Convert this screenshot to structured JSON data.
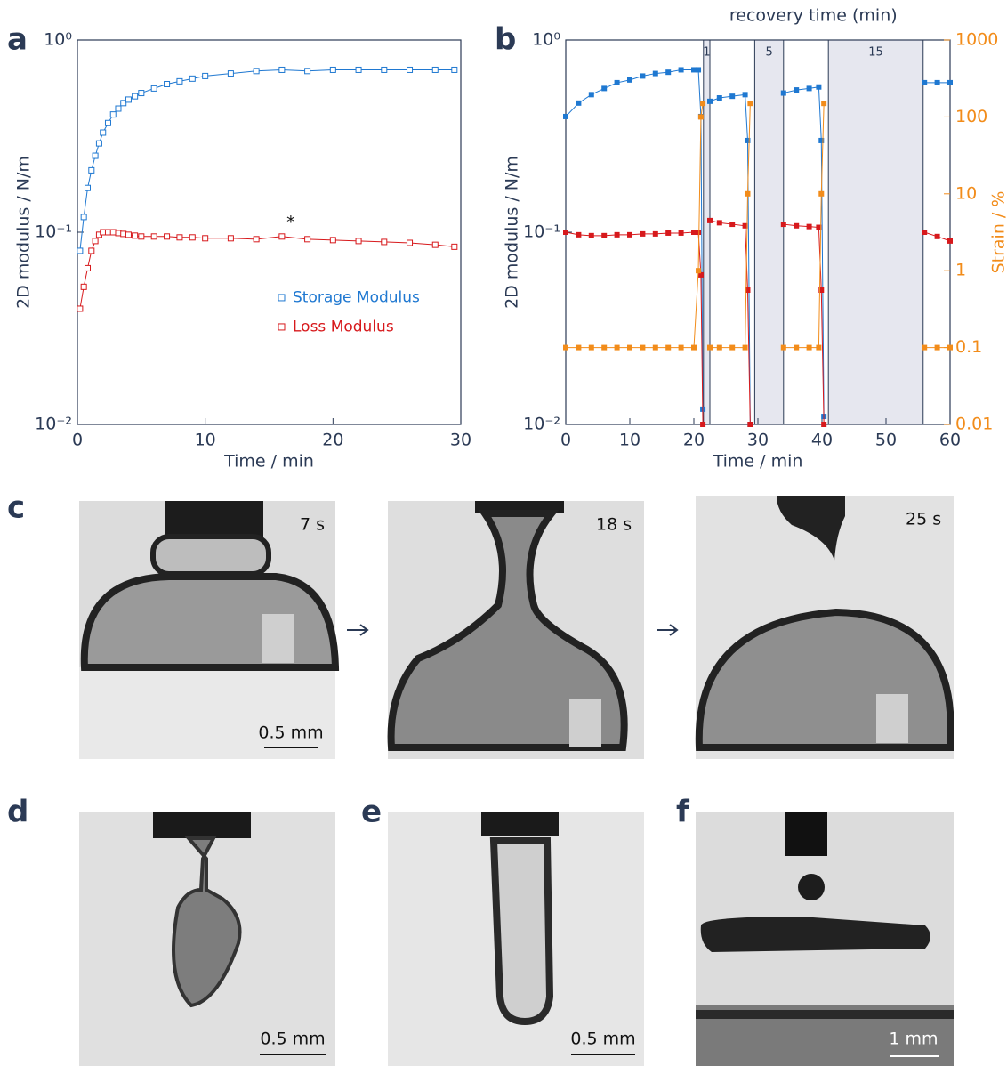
{
  "panel_labels": [
    "a",
    "b",
    "c",
    "d",
    "e",
    "f"
  ],
  "chart_data": [
    {
      "type": "scatter",
      "xlabel": "Time / min",
      "ylabel": "2D modulus / N/m",
      "xlim": [
        0,
        30
      ],
      "xticks": [
        0,
        10,
        20,
        30
      ],
      "ylim": [
        0.01,
        1
      ],
      "ylog": true,
      "yticks": [
        {
          "value": 1,
          "label": "10⁰"
        },
        {
          "value": 0.1,
          "label": "10⁻¹"
        },
        {
          "value": 0.01,
          "label": "10⁻²"
        }
      ],
      "legend": "right",
      "marker": "open-square",
      "annotations": [
        {
          "text": "*",
          "x": 16.7,
          "y": 0.112
        }
      ],
      "series": [
        {
          "name": "Storage Modulus",
          "color": "#1f78d1",
          "x": [
            0.2,
            0.5,
            0.8,
            1.1,
            1.4,
            1.7,
            2,
            2.4,
            2.8,
            3.2,
            3.6,
            4,
            4.5,
            5,
            6,
            7,
            8,
            9,
            10,
            12,
            14,
            16,
            18,
            20,
            22,
            24,
            26,
            28,
            29.5
          ],
          "values": [
            0.08,
            0.12,
            0.17,
            0.21,
            0.25,
            0.29,
            0.33,
            0.37,
            0.41,
            0.44,
            0.47,
            0.49,
            0.51,
            0.53,
            0.56,
            0.59,
            0.61,
            0.63,
            0.65,
            0.67,
            0.69,
            0.7,
            0.69,
            0.7,
            0.7,
            0.7,
            0.7,
            0.7,
            0.7
          ]
        },
        {
          "name": "Loss Modulus",
          "color": "#d7191c",
          "x": [
            0.2,
            0.5,
            0.8,
            1.1,
            1.4,
            1.7,
            2,
            2.4,
            2.8,
            3.2,
            3.6,
            4,
            4.5,
            5,
            6,
            7,
            8,
            9,
            10,
            12,
            14,
            16,
            18,
            20,
            22,
            24,
            26,
            28,
            29.5
          ],
          "values": [
            0.04,
            0.052,
            0.065,
            0.08,
            0.09,
            0.097,
            0.1,
            0.1,
            0.1,
            0.099,
            0.098,
            0.097,
            0.096,
            0.095,
            0.095,
            0.095,
            0.094,
            0.094,
            0.093,
            0.093,
            0.092,
            0.095,
            0.092,
            0.091,
            0.09,
            0.089,
            0.088,
            0.086,
            0.084
          ]
        }
      ]
    },
    {
      "type": "scatter",
      "xlabel": "Time / min",
      "ylabel": "2D modulus / N/m",
      "y2label": "Strain / %",
      "annotation": "recovery time (min)",
      "xlim": [
        0,
        60
      ],
      "xticks": [
        0,
        10,
        20,
        30,
        40,
        50,
        60
      ],
      "ylim": [
        0.01,
        1
      ],
      "ylog": true,
      "yticks": [
        {
          "value": 1,
          "label": "10⁰"
        },
        {
          "value": 0.1,
          "label": "10⁻¹"
        },
        {
          "value": 0.01,
          "label": "10⁻²"
        }
      ],
      "y2lim": [
        0.01,
        1000
      ],
      "y2log": true,
      "y2ticks": [
        0.01,
        0.1,
        1,
        10,
        100,
        1000
      ],
      "y2color": "#f28c1a",
      "legend": false,
      "marker": "filled-square",
      "shaded_regions": [
        {
          "xlim": [
            21.5,
            22.5
          ],
          "label": 1
        },
        {
          "xlim": [
            29.5,
            34
          ],
          "label": 5
        },
        {
          "xlim": [
            41,
            55.8
          ],
          "label": 15
        }
      ],
      "series": [
        {
          "color": "#1f78d1",
          "x": [
            0,
            2,
            4,
            6,
            8,
            10,
            12,
            14,
            16,
            18,
            20,
            20.7,
            21.1,
            21.4,
            21.9,
            22.5,
            24,
            26,
            28,
            28.4,
            28.8,
            31,
            34,
            36,
            38,
            39.5,
            39.9,
            40.3,
            48,
            56,
            58,
            60
          ],
          "values": [
            0.4,
            0.47,
            0.52,
            0.56,
            0.6,
            0.62,
            0.65,
            0.67,
            0.68,
            0.7,
            0.7,
            0.7,
            0.4,
            0.012,
            null,
            0.48,
            0.5,
            0.51,
            0.52,
            0.3,
            0.01,
            null,
            0.53,
            0.55,
            0.56,
            0.57,
            0.3,
            0.011,
            null,
            0.6,
            0.6,
            0.6
          ]
        },
        {
          "color": "#d7191c",
          "x": [
            0,
            2,
            4,
            6,
            8,
            10,
            12,
            14,
            16,
            18,
            20,
            20.7,
            21.1,
            21.4,
            21.9,
            22.5,
            24,
            26,
            28,
            28.4,
            28.8,
            31,
            34,
            36,
            38,
            39.5,
            39.9,
            40.3,
            48,
            56,
            58,
            60
          ],
          "values": [
            0.1,
            0.097,
            0.096,
            0.096,
            0.097,
            0.097,
            0.098,
            0.098,
            0.099,
            0.099,
            0.1,
            0.1,
            0.06,
            0.01,
            null,
            0.115,
            0.112,
            0.11,
            0.108,
            0.05,
            0.01,
            null,
            0.11,
            0.108,
            0.107,
            0.106,
            0.05,
            0.01,
            null,
            0.1,
            0.095,
            0.09
          ]
        },
        {
          "color": "#f28c1a",
          "axis": "y2",
          "x": [
            0,
            2,
            4,
            6,
            8,
            10,
            12,
            14,
            16,
            18,
            20,
            20.7,
            21.1,
            21.4,
            21.9,
            22.5,
            24,
            26,
            28,
            28.4,
            28.8,
            31,
            34,
            36,
            38,
            39.5,
            39.9,
            40.3,
            48,
            56,
            58,
            60
          ],
          "values": [
            0.1,
            0.1,
            0.1,
            0.1,
            0.1,
            0.1,
            0.1,
            0.1,
            0.1,
            0.1,
            0.1,
            1,
            100,
            150,
            null,
            0.1,
            0.1,
            0.1,
            0.1,
            10,
            150,
            null,
            0.1,
            0.1,
            0.1,
            0.1,
            10,
            150,
            null,
            0.1,
            0.1,
            0.1
          ]
        }
      ]
    }
  ],
  "images": {
    "c": [
      {
        "time": "7 s",
        "scale_bar": "0.5 mm"
      },
      {
        "time": "18 s"
      },
      {
        "time": "25 s"
      }
    ],
    "d": {
      "scale_bar": "0.5 mm"
    },
    "e": {
      "scale_bar": "0.5 mm"
    },
    "f": {
      "scale_bar": "1 mm"
    }
  }
}
